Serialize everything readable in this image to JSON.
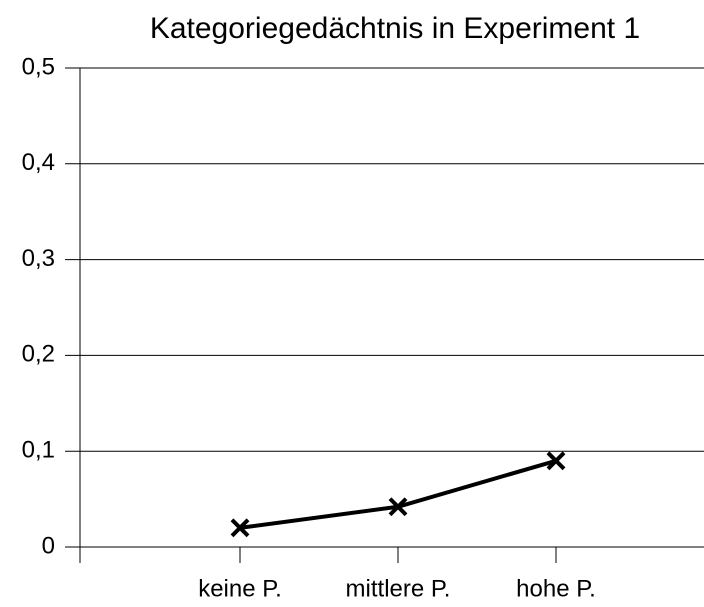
{
  "chart_data": {
    "type": "line",
    "title": "Kategoriegedächtnis in Experiment 1",
    "categories": [
      "keine P.",
      "mittlere P.",
      "hohe P."
    ],
    "series": [
      {
        "name": "Kategoriegedächtnis",
        "color": "#000000",
        "values": [
          0.02,
          0.042,
          0.09
        ]
      }
    ],
    "ylim": [
      0,
      0.5
    ],
    "yticks": [
      0,
      {
        "value": 0.1,
        "label": "0,1"
      },
      {
        "value": 0.2,
        "label": "0,2"
      },
      {
        "value": 0.3,
        "label": "0,3"
      },
      {
        "value": 0.4,
        "label": "0,4"
      },
      {
        "value": 0.5,
        "label": "0,5"
      }
    ],
    "grid": true,
    "marker": "x"
  }
}
